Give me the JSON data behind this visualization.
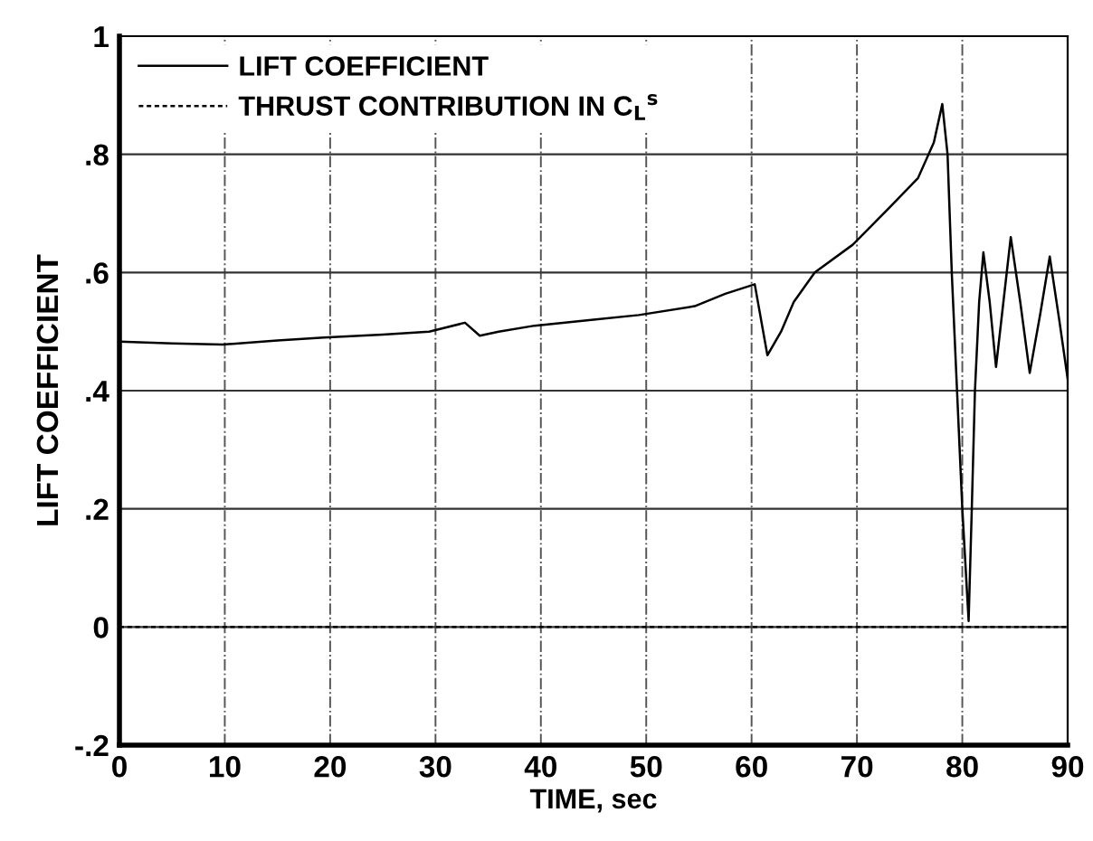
{
  "chart_data": {
    "type": "line",
    "xlabel": "TIME, sec",
    "ylabel": "LIFT COEFFICIENT",
    "xlim": [
      0,
      90
    ],
    "xticks": [
      0,
      10,
      20,
      30,
      40,
      50,
      60,
      70,
      80,
      90
    ],
    "ylim": [
      -0.2,
      1
    ],
    "yticks": [
      {
        "value": -0.2,
        "label": "-.2"
      },
      0,
      {
        "value": 0.2,
        "label": ".2"
      },
      {
        "value": 0.4,
        "label": ".4"
      },
      {
        "value": 0.6,
        "label": ".6"
      },
      {
        "value": 0.8,
        "label": ".8"
      },
      1
    ],
    "grid": true,
    "legend": "top left",
    "series": [
      {
        "name": "LIFT COEFFICIENT",
        "color": "#000000",
        "line_style": "solid",
        "x": [
          0,
          5,
          9.8,
          15,
          19.4,
          25,
          29.4,
          32.8,
          34.2,
          36,
          39.4,
          45,
          49.3,
          54.6,
          57.5,
          60.3,
          61.5,
          62.8,
          64,
          66,
          69.6,
          73.1,
          75.8,
          77.3,
          78.1,
          78.6,
          79,
          79.5,
          80,
          80.6,
          80.9,
          81.2,
          81.6,
          82,
          82.6,
          83.2,
          83.9,
          84.6,
          85.5,
          86.4,
          87.4,
          88.3,
          89.2,
          90
        ],
        "values": [
          0.483,
          0.48,
          0.478,
          0.485,
          0.49,
          0.495,
          0.5,
          0.515,
          0.493,
          0.5,
          0.51,
          0.52,
          0.528,
          0.543,
          0.564,
          0.58,
          0.46,
          0.5,
          0.55,
          0.6,
          0.647,
          0.71,
          0.76,
          0.82,
          0.885,
          0.8,
          0.6,
          0.4,
          0.2,
          0.01,
          0.2,
          0.4,
          0.55,
          0.634,
          0.55,
          0.44,
          0.55,
          0.66,
          0.55,
          0.43,
          0.53,
          0.627,
          0.52,
          0.42
        ]
      },
      {
        "name": "THRUST CONTRIBUTION IN C$_{L}$$^{s}$",
        "color": "#000000",
        "line_style": "dashed",
        "x": [
          0,
          90
        ],
        "values": [
          0,
          0
        ]
      }
    ]
  }
}
